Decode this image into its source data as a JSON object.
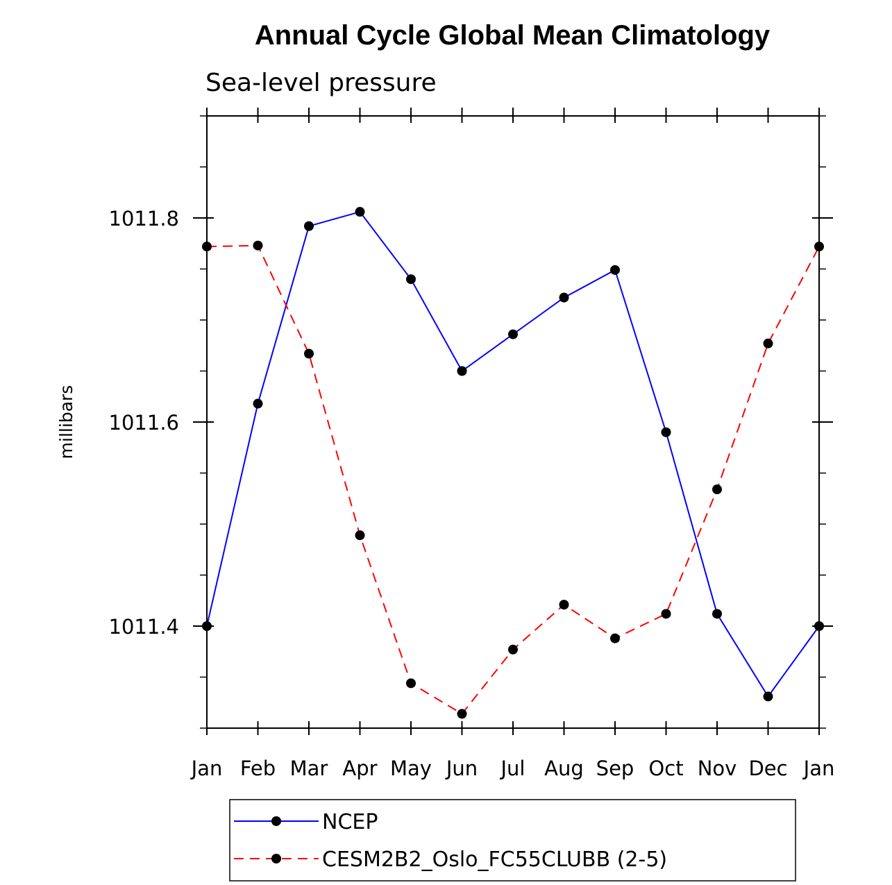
{
  "chart_data": {
    "type": "line",
    "title": "Annual Cycle Global Mean Climatology",
    "subtitle": "Sea-level pressure",
    "xlabel": "",
    "ylabel": "millibars",
    "categories": [
      "Jan",
      "Feb",
      "Mar",
      "Apr",
      "May",
      "Jun",
      "Jul",
      "Aug",
      "Sep",
      "Oct",
      "Nov",
      "Dec",
      "Jan"
    ],
    "ylim": [
      1011.3,
      1011.9
    ],
    "yticks_major": [
      1011.4,
      1011.6,
      1011.8
    ],
    "ytick_labels": [
      "1011.4",
      "1011.6",
      "1011.8"
    ],
    "yticks_minor_step": 0.05,
    "grid": false,
    "legend_position": "bottom",
    "series": [
      {
        "name": "NCEP",
        "color": "#0000ff",
        "dash": "solid",
        "marker": "filled-circle",
        "values": [
          1011.4,
          1011.618,
          1011.792,
          1011.806,
          1011.74,
          1011.65,
          1011.686,
          1011.722,
          1011.749,
          1011.59,
          1011.412,
          1011.331,
          1011.4
        ]
      },
      {
        "name": "CESM2B2_Oslo_FC55CLUBB (2-5)",
        "color": "#ff0000",
        "dash": "dashed",
        "marker": "filled-circle",
        "values": [
          1011.772,
          1011.773,
          1011.667,
          1011.489,
          1011.344,
          1011.314,
          1011.377,
          1011.421,
          1011.388,
          1011.412,
          1011.534,
          1011.677,
          1011.772
        ]
      }
    ]
  }
}
